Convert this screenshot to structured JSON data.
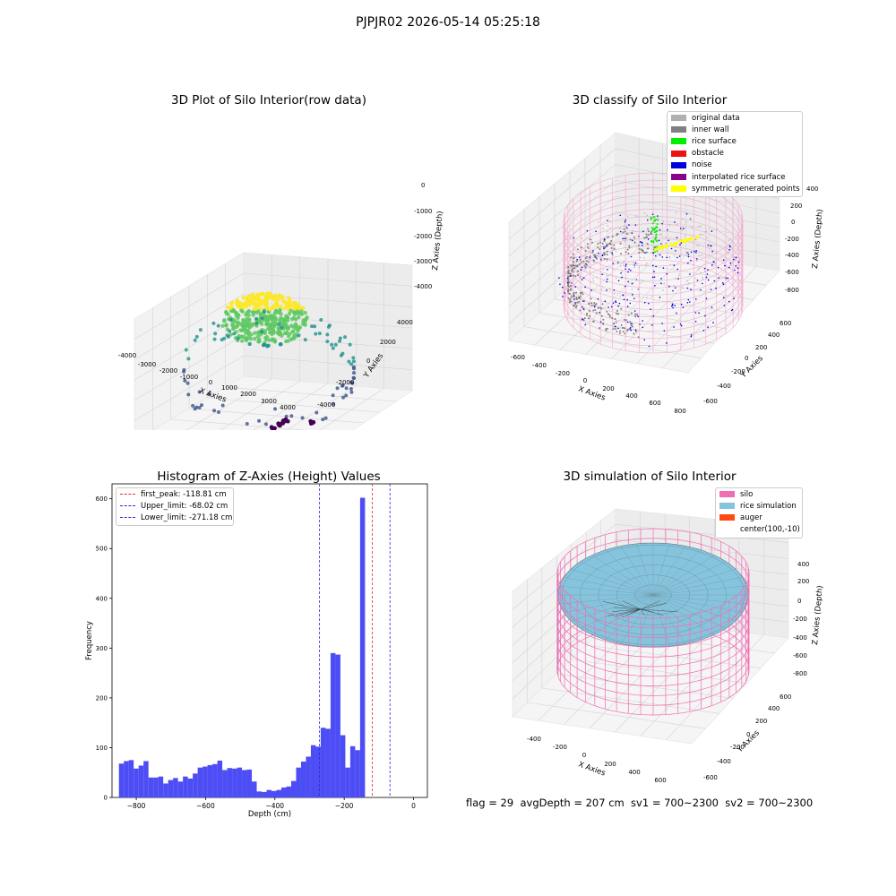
{
  "suptitle": "PJPJR02 2026-05-14 05:25:18",
  "footer": "flag = 29  avgDepth = 207 cm  sv1 = 700~2300  sv2 = 700~2300",
  "colors": {
    "hist_bar": "#4d4df5",
    "first_peak": "#e8282d",
    "limits": "#2828e8",
    "silo": "#f06eb4",
    "rice": "#86c4dd",
    "auger": "#ff4a12"
  },
  "panel1": {
    "title": "3D Plot of Silo Interior(row data)",
    "xlabel": "X Axies",
    "ylabel": "Y Axies",
    "zlabel": "Z Axies (Depth)",
    "xticks": [
      "-4000",
      "-3000",
      "-2000",
      "-1000",
      "0",
      "1000",
      "2000",
      "3000",
      "4000"
    ],
    "yticks": [
      "-4000",
      "-2000",
      "0",
      "2000",
      "4000"
    ],
    "zticks": [
      "0",
      "-1000",
      "-2000",
      "-3000",
      "-4000"
    ]
  },
  "panel2": {
    "title": "3D classify of Silo Interior",
    "xlabel": "X Axies",
    "ylabel": "Y Axies",
    "zlabel": "Z Axies (Depth)",
    "xticks": [
      "-600",
      "-400",
      "-200",
      "0",
      "200",
      "400",
      "600",
      "800"
    ],
    "yticks": [
      "-600",
      "-400",
      "-200",
      "0",
      "200",
      "400",
      "600"
    ],
    "zticks": [
      "400",
      "200",
      "0",
      "-200",
      "-400",
      "-600",
      "-800"
    ],
    "legend": [
      {
        "label": "original data",
        "color": "#b0b0b0"
      },
      {
        "label": "inner wall",
        "color": "#808080"
      },
      {
        "label": "rice surface",
        "color": "#00ee00"
      },
      {
        "label": "obstacle",
        "color": "#ee1111"
      },
      {
        "label": "noise",
        "color": "#0000dd"
      },
      {
        "label": "interpolated rice surface",
        "color": "#8b008b"
      },
      {
        "label": "symmetric generated points",
        "color": "#ffff00"
      }
    ]
  },
  "panel3": {
    "title": "Histogram of Z-Axies (Height) Values",
    "legend": [
      {
        "label": "first_peak: -118.81 cm",
        "color": "#e8282d"
      },
      {
        "label": "Upper_limit: -68.02 cm",
        "color": "#2828e8"
      },
      {
        "label": "Lower_limit: -271.18 cm",
        "color": "#2828e8"
      }
    ]
  },
  "panel4": {
    "title": "3D simulation of Silo Interior",
    "xlabel": "X Axies",
    "ylabel": "Y Axies",
    "zlabel": "Z Axies (Depth)",
    "xticks": [
      "-400",
      "-200",
      "0",
      "200",
      "400",
      "600"
    ],
    "yticks": [
      "-600",
      "-400",
      "-200",
      "0",
      "200",
      "400",
      "600"
    ],
    "zticks": [
      "400",
      "200",
      "0",
      "-200",
      "-400",
      "-600",
      "-800"
    ],
    "legend": [
      {
        "label": "silo",
        "color": "#f06eb4"
      },
      {
        "label": "rice simulation",
        "color": "#86c4dd"
      },
      {
        "label": "auger",
        "color": "#ff4a12"
      },
      {
        "label": "center(100,-10)",
        "color": ""
      }
    ]
  },
  "chart_data": [
    {
      "type": "scatter",
      "title": "3D Plot of Silo Interior(row data)",
      "xlabel": "X Axies",
      "ylabel": "Y Axies",
      "zlabel": "Z Axies (Depth)",
      "xlim": [
        -4000,
        4000
      ],
      "ylim": [
        -4000,
        4000
      ],
      "zlim": [
        -4500,
        0
      ],
      "colormap": "viridis"
    },
    {
      "type": "scatter",
      "title": "3D classify of Silo Interior",
      "xlabel": "X Axies",
      "ylabel": "Y Axies",
      "zlabel": "Z Axies (Depth)",
      "xlim": [
        -600,
        800
      ],
      "ylim": [
        -600,
        600
      ],
      "zlim": [
        -800,
        400
      ],
      "legend_position": "top-right"
    },
    {
      "type": "bar",
      "title": "Histogram of Z-Axies (Height) Values",
      "xlabel": "Depth (cm)",
      "ylabel": "Frequency",
      "xlim": [
        -870,
        40
      ],
      "ylim": [
        0,
        630
      ],
      "xticks": [
        -800,
        -600,
        -400,
        -200,
        0
      ],
      "yticks": [
        0,
        100,
        200,
        300,
        400,
        500,
        600
      ],
      "bin_start": -850,
      "bin_width": 14.2,
      "values": [
        68,
        73,
        75,
        58,
        64,
        73,
        40,
        40,
        42,
        28,
        35,
        39,
        32,
        42,
        38,
        48,
        60,
        62,
        65,
        67,
        74,
        55,
        59,
        58,
        60,
        55,
        56,
        32,
        12,
        11,
        15,
        13,
        15,
        20,
        22,
        33,
        60,
        72,
        82,
        105,
        102,
        140,
        138,
        290,
        287,
        125,
        60,
        103,
        95,
        602
      ],
      "vlines": [
        {
          "label": "first_peak: -118.81 cm",
          "x": -118.81,
          "color": "#e8282d"
        },
        {
          "label": "Upper_limit: -68.02 cm",
          "x": -68.02,
          "color": "#2828e8"
        },
        {
          "label": "Lower_limit: -271.18 cm",
          "x": -271.18,
          "color": "#2828e8"
        }
      ],
      "legend_position": "top-left"
    },
    {
      "type": "scatter",
      "title": "3D simulation of Silo Interior",
      "xlabel": "X Axies",
      "ylabel": "Y Axies",
      "zlabel": "Z Axies (Depth)",
      "xlim": [
        -500,
        700
      ],
      "ylim": [
        -700,
        700
      ],
      "zlim": [
        -900,
        450
      ],
      "legend_position": "top-right"
    }
  ]
}
